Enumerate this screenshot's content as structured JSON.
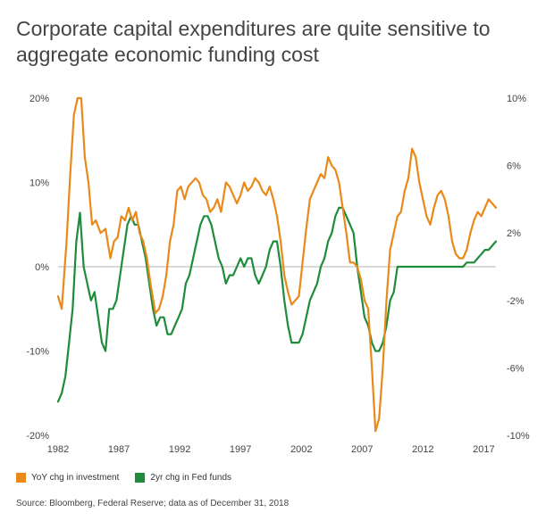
{
  "header": {
    "title": "Corporate capital expenditures are quite sensitive to aggregate economic funding cost"
  },
  "footer": {
    "source": "Source: Bloomberg, Federal Reserve; data as of December 31, 2018"
  },
  "chart_data": {
    "type": "line",
    "x_ticks": [
      "1982",
      "1987",
      "1992",
      "1997",
      "2002",
      "2007",
      "2012",
      "2017"
    ],
    "x_tick_values": [
      1982,
      1987,
      1992,
      1997,
      2002,
      2007,
      2012,
      2017
    ],
    "xlim": [
      1982,
      2018
    ],
    "y_left_ticks": [
      "20%",
      "10%",
      "0%",
      "-10%",
      "-20%"
    ],
    "y_left_tick_values": [
      20,
      10,
      0,
      -10,
      -20
    ],
    "y_left_lim": [
      -20,
      20
    ],
    "y_right_ticks": [
      "10%",
      "6%",
      "2%",
      "-2%",
      "-6%",
      "-10%"
    ],
    "y_right_tick_values": [
      10,
      6,
      2,
      -2,
      -6,
      -10
    ],
    "y_right_lim": [
      -10,
      10
    ],
    "grid": false,
    "legend_position": "bottom-left",
    "series": [
      {
        "name": "YoY chg in investment",
        "axis": "left",
        "color": "#E8891A",
        "x": [
          1982.0,
          1982.3,
          1982.7,
          1983.0,
          1983.3,
          1983.6,
          1983.9,
          1984.2,
          1984.5,
          1984.8,
          1985.1,
          1985.5,
          1985.9,
          1986.3,
          1986.6,
          1986.9,
          1987.2,
          1987.5,
          1987.8,
          1988.1,
          1988.4,
          1988.7,
          1989.0,
          1989.3,
          1989.6,
          1990.0,
          1990.3,
          1990.6,
          1990.9,
          1991.2,
          1991.5,
          1991.8,
          1992.1,
          1992.4,
          1992.7,
          1993.0,
          1993.3,
          1993.6,
          1993.9,
          1994.2,
          1994.5,
          1994.8,
          1995.1,
          1995.4,
          1995.8,
          1996.1,
          1996.4,
          1996.7,
          1997.0,
          1997.3,
          1997.6,
          1997.9,
          1998.2,
          1998.5,
          1998.8,
          1999.1,
          1999.4,
          1999.7,
          2000.0,
          2000.3,
          2000.6,
          2000.9,
          2001.2,
          2001.5,
          2001.8,
          2002.1,
          2002.4,
          2002.7,
          2003.0,
          2003.3,
          2003.6,
          2003.9,
          2004.2,
          2004.5,
          2004.8,
          2005.1,
          2005.4,
          2005.7,
          2006.0,
          2006.3,
          2006.6,
          2006.9,
          2007.2,
          2007.5,
          2007.8,
          2008.1,
          2008.4,
          2008.7,
          2009.0,
          2009.3,
          2009.6,
          2009.9,
          2010.2,
          2010.5,
          2010.8,
          2011.1,
          2011.4,
          2011.7,
          2012.0,
          2012.3,
          2012.6,
          2012.9,
          2013.2,
          2013.5,
          2013.8,
          2014.1,
          2014.4,
          2014.7,
          2015.0,
          2015.3,
          2015.6,
          2015.9,
          2016.2,
          2016.5,
          2016.8,
          2017.1,
          2017.4,
          2017.7,
          2018.0
        ],
        "values": [
          -3.5,
          -5.0,
          3.0,
          11.0,
          18.0,
          20.0,
          20.0,
          13.0,
          10.0,
          5.0,
          5.5,
          4.0,
          4.5,
          1.0,
          3.0,
          3.5,
          6.0,
          5.5,
          7.0,
          5.5,
          6.5,
          4.0,
          3.0,
          1.0,
          -2.0,
          -5.5,
          -5.0,
          -3.5,
          -1.0,
          3.0,
          5.0,
          9.0,
          9.5,
          8.0,
          9.5,
          10.0,
          10.5,
          10.0,
          8.5,
          8.0,
          6.5,
          7.0,
          8.0,
          6.5,
          10.0,
          9.5,
          8.5,
          7.5,
          8.5,
          10.0,
          9.0,
          9.5,
          10.5,
          10.0,
          9.0,
          8.5,
          9.5,
          8.0,
          6.0,
          3.0,
          -1.0,
          -3.0,
          -4.5,
          -4.0,
          -3.5,
          0.5,
          4.5,
          8.0,
          9.0,
          10.0,
          11.0,
          10.5,
          13.0,
          12.0,
          11.5,
          10.0,
          7.0,
          4.0,
          0.5,
          0.5,
          0.0,
          -1.5,
          -4.0,
          -5.0,
          -12.0,
          -19.5,
          -18.0,
          -12.0,
          -4.0,
          2.0,
          4.0,
          6.0,
          6.5,
          9.0,
          10.5,
          14.0,
          13.0,
          10.0,
          8.0,
          6.0,
          5.0,
          7.0,
          8.5,
          9.0,
          8.0,
          6.0,
          3.0,
          1.5,
          1.0,
          1.0,
          2.0,
          4.0,
          5.5,
          6.5,
          6.0,
          7.0,
          8.0,
          7.5,
          7.0
        ]
      },
      {
        "name": "2yr chg in Fed funds",
        "axis": "right",
        "color": "#1E8C3A",
        "x": [
          1982.0,
          1982.3,
          1982.6,
          1982.9,
          1983.2,
          1983.5,
          1983.8,
          1984.1,
          1984.4,
          1984.7,
          1985.0,
          1985.3,
          1985.6,
          1985.9,
          1986.2,
          1986.5,
          1986.8,
          1987.1,
          1987.4,
          1987.7,
          1988.0,
          1988.3,
          1988.6,
          1988.9,
          1989.2,
          1989.5,
          1989.8,
          1990.1,
          1990.4,
          1990.7,
          1991.0,
          1991.3,
          1991.6,
          1991.9,
          1992.2,
          1992.5,
          1992.8,
          1993.1,
          1993.4,
          1993.7,
          1994.0,
          1994.3,
          1994.6,
          1994.9,
          1995.2,
          1995.5,
          1995.8,
          1996.1,
          1996.4,
          1996.7,
          1997.0,
          1997.3,
          1997.6,
          1997.9,
          1998.2,
          1998.5,
          1998.8,
          1999.1,
          1999.4,
          1999.7,
          2000.0,
          2000.3,
          2000.6,
          2000.9,
          2001.2,
          2001.5,
          2001.8,
          2002.1,
          2002.4,
          2002.7,
          2003.0,
          2003.3,
          2003.6,
          2003.9,
          2004.2,
          2004.5,
          2004.8,
          2005.1,
          2005.4,
          2005.7,
          2006.0,
          2006.3,
          2006.6,
          2006.9,
          2007.2,
          2007.5,
          2007.8,
          2008.1,
          2008.4,
          2008.7,
          2009.0,
          2009.3,
          2009.6,
          2009.9,
          2010.2,
          2010.5,
          2010.8,
          2011.1,
          2011.4,
          2011.7,
          2012.0,
          2012.3,
          2012.6,
          2012.9,
          2013.2,
          2013.5,
          2013.8,
          2014.1,
          2014.4,
          2014.7,
          2015.0,
          2015.3,
          2015.6,
          2015.9,
          2016.2,
          2016.5,
          2016.8,
          2017.1,
          2017.4,
          2017.7,
          2018.0
        ],
        "values": [
          -8.0,
          -7.5,
          -6.5,
          -4.5,
          -2.5,
          1.5,
          3.2,
          0.0,
          -1.0,
          -2.0,
          -1.5,
          -3.0,
          -4.5,
          -5.0,
          -2.5,
          -2.5,
          -2.0,
          -0.5,
          1.0,
          2.5,
          3.0,
          2.5,
          2.5,
          1.5,
          0.5,
          -1.0,
          -2.5,
          -3.5,
          -3.0,
          -3.0,
          -4.0,
          -4.0,
          -3.5,
          -3.0,
          -2.5,
          -1.0,
          -0.5,
          0.5,
          1.5,
          2.5,
          3.0,
          3.0,
          2.5,
          1.5,
          0.5,
          0.0,
          -1.0,
          -0.5,
          -0.5,
          0.0,
          0.5,
          0.0,
          0.5,
          0.5,
          -0.5,
          -1.0,
          -0.5,
          0.0,
          1.0,
          1.5,
          1.5,
          0.0,
          -2.0,
          -3.5,
          -4.5,
          -4.5,
          -4.5,
          -4.0,
          -3.0,
          -2.0,
          -1.5,
          -1.0,
          0.0,
          0.5,
          1.5,
          2.0,
          3.0,
          3.5,
          3.5,
          3.0,
          2.5,
          2.0,
          0.0,
          -1.5,
          -3.0,
          -3.5,
          -4.5,
          -5.0,
          -5.0,
          -4.5,
          -3.5,
          -2.0,
          -1.5,
          0.0,
          0.0,
          0.0,
          0.0,
          0.0,
          0.0,
          0.0,
          0.0,
          0.0,
          0.0,
          0.0,
          0.0,
          0.0,
          0.0,
          0.0,
          0.0,
          0.0,
          0.0,
          0.0,
          0.25,
          0.25,
          0.25,
          0.5,
          0.75,
          1.0,
          1.0,
          1.25,
          1.5
        ]
      }
    ]
  }
}
